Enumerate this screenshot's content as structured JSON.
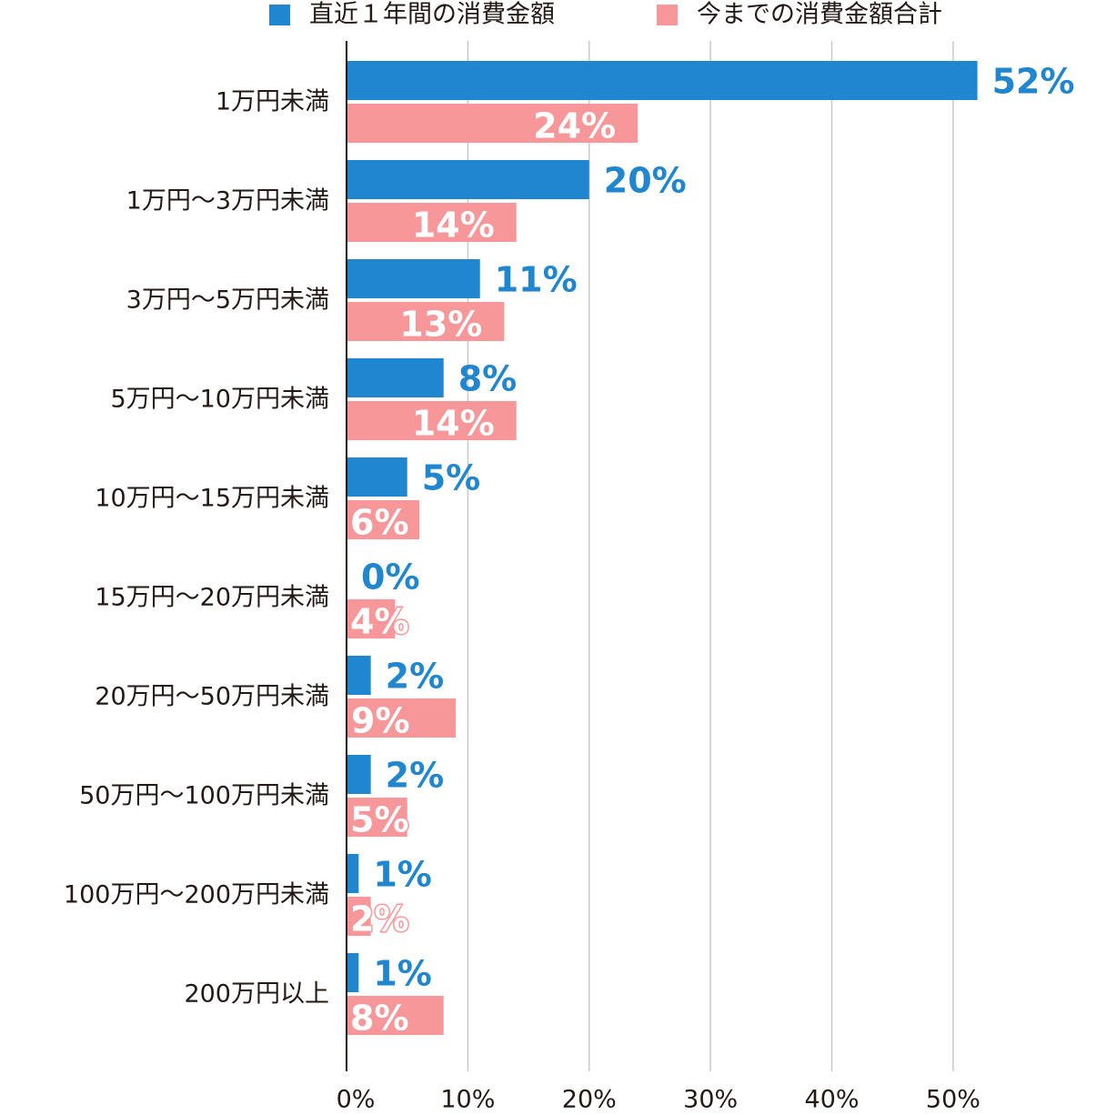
{
  "chart_data": {
    "type": "bar",
    "orientation": "horizontal",
    "categories": [
      "1万円未満",
      "1万円～3万円未満",
      "3万円～5万円未満",
      "5万円～10万円未満",
      "10万円～15万円未満",
      "15万円～20万円未満",
      "20万円～50万円未満",
      "50万円～100万円未満",
      "100万円～200万円未満",
      "200万円以上"
    ],
    "series": [
      {
        "name": "直近１年間の消費金額",
        "color": "#1f86cf",
        "values": [
          52,
          20,
          11,
          8,
          5,
          0,
          2,
          2,
          1,
          1
        ],
        "value_labels": [
          "52%",
          "20%",
          "11%",
          "8%",
          "5%",
          "0%",
          "2%",
          "2%",
          "1%",
          "1%"
        ]
      },
      {
        "name": "今までの消費金額合計",
        "color": "#f7979a",
        "values": [
          24,
          14,
          13,
          14,
          6,
          4,
          9,
          5,
          2,
          8
        ],
        "value_labels": [
          "24%",
          "14%",
          "13%",
          "14%",
          "6%",
          "4%",
          "9%",
          "5%",
          "2%",
          "8%"
        ]
      }
    ],
    "xlim": [
      0,
      62
    ],
    "xticks": [
      {
        "value": 0,
        "label": "0%"
      },
      {
        "value": 10,
        "label": "10%"
      },
      {
        "value": 20,
        "label": "20%"
      },
      {
        "value": 30,
        "label": "30%"
      },
      {
        "value": 40,
        "label": "40%"
      },
      {
        "value": 50,
        "label": "50%"
      }
    ],
    "grid": true,
    "legend": "top"
  }
}
